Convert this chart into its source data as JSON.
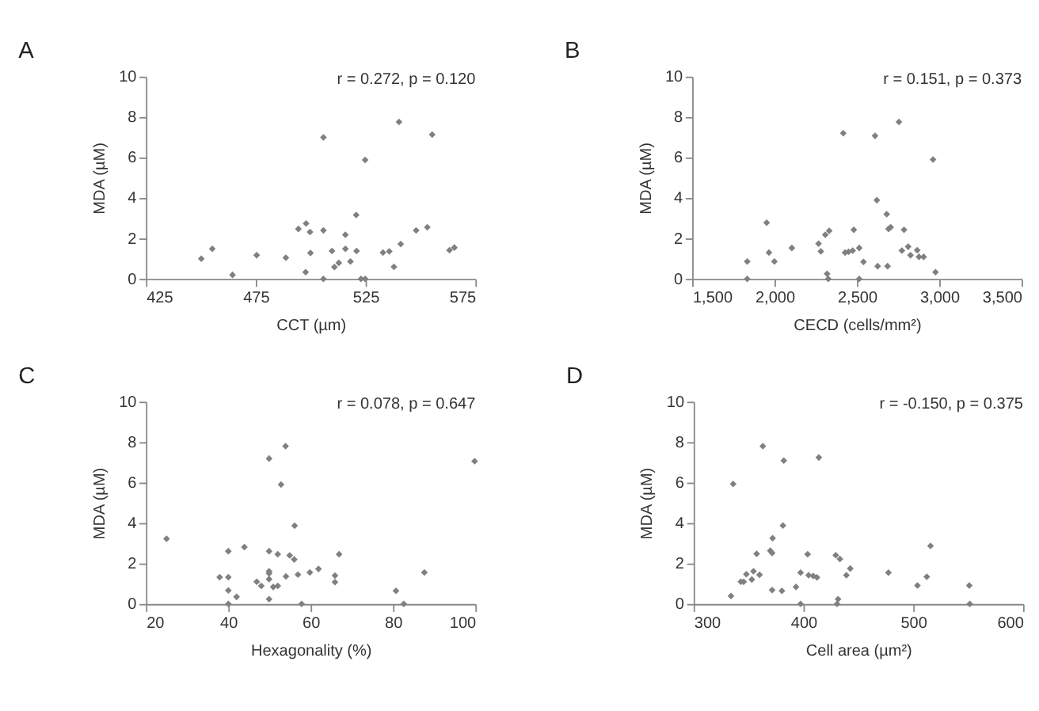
{
  "chart_data": [
    {
      "type": "scatter",
      "title": "A",
      "annotations": [
        "r = 0.272, p = 0.120"
      ],
      "xlabel": "CCT (µm)",
      "ylabel": "MDA (µM)",
      "marker": "diamond",
      "xlim": [
        425,
        575
      ],
      "xticks": [
        425,
        475,
        525,
        575
      ],
      "ylim": [
        0,
        10
      ],
      "yticks": [
        0,
        2,
        4,
        6,
        8,
        10
      ],
      "series": [
        {
          "color": "#808080",
          "x": [
            450.2,
            455.2,
            464.4,
            475.4,
            488.7,
            494.4,
            497.9,
            497.7,
            499.7,
            499.9,
            505.8,
            505.8,
            505.8,
            509.7,
            510.8,
            512.8,
            515.8,
            515.8,
            518.1,
            520.7,
            520.9,
            522.9,
            524.8,
            524.8,
            532.9,
            535.8,
            537.9,
            540.2,
            541.0,
            548.0,
            553.1,
            555.3,
            563.2,
            565.4
          ],
          "values": [
            1.0,
            1.49,
            0.2,
            1.17,
            1.05,
            2.47,
            2.74,
            0.33,
            2.32,
            1.28,
            7.0,
            2.4,
            0,
            1.38,
            0.59,
            0.79,
            2.18,
            1.49,
            0.86,
            3.16,
            1.38,
            0,
            0,
            5.88,
            1.3,
            1.36,
            0.6,
            7.76,
            1.72,
            2.4,
            2.55,
            7.13,
            1.42,
            1.55
          ]
        }
      ]
    },
    {
      "type": "scatter",
      "title": "B",
      "annotations": [
        "r = 0.151, p = 0.373"
      ],
      "xlabel": "CECD (cells/mm²)",
      "ylabel": "MDA (µM)",
      "marker": "diamond",
      "xlim": [
        1500,
        3500
      ],
      "xticks": [
        {
          "value": 1500,
          "label": "1,500"
        },
        {
          "value": 2000,
          "label": "2,000"
        },
        {
          "value": 2500,
          "label": "2,500"
        },
        {
          "value": 3000,
          "label": "3,000"
        },
        {
          "value": 3500,
          "label": "3,500"
        }
      ],
      "ylim": [
        0,
        10
      ],
      "yticks": [
        0,
        2,
        4,
        6,
        8,
        10
      ],
      "series": [
        {
          "color": "#808080",
          "x": [
            1834,
            1834,
            1952,
            1966,
            1999,
            2105,
            2267,
            2281,
            2308,
            2319,
            2326,
            2332,
            2417,
            2428,
            2449,
            2474,
            2481,
            2514,
            2514,
            2540,
            2610,
            2621,
            2626,
            2681,
            2686,
            2692,
            2705,
            2755,
            2773,
            2786,
            2811,
            2825,
            2866,
            2877,
            2905,
            2962,
            2977
          ],
          "values": [
            0.86,
            0,
            2.78,
            1.3,
            0.86,
            1.53,
            1.74,
            1.36,
            2.18,
            0.25,
            0,
            2.38,
            7.2,
            1.3,
            1.34,
            1.4,
            2.43,
            1.53,
            0,
            0.84,
            7.07,
            3.89,
            0.63,
            3.2,
            0.63,
            2.47,
            2.55,
            7.76,
            1.4,
            2.43,
            1.59,
            1.17,
            1.42,
            1.09,
            1.09,
            5.9,
            0.33
          ]
        }
      ]
    },
    {
      "type": "scatter",
      "title": "C",
      "annotations": [
        "r = 0.078, p = 0.647"
      ],
      "xlabel": "Hexagonality (%)",
      "ylabel": "MDA (µM)",
      "marker": "diamond",
      "xlim": [
        20,
        100
      ],
      "xticks": [
        20,
        40,
        60,
        80,
        100
      ],
      "ylim": [
        0,
        10
      ],
      "yticks": [
        0,
        2,
        4,
        6,
        8,
        10
      ],
      "series": [
        {
          "color": "#808080",
          "x": [
            25.0,
            37.9,
            40.0,
            40.0,
            40.0,
            40.0,
            42.0,
            43.9,
            46.9,
            48.0,
            49.9,
            49.9,
            49.9,
            49.9,
            49.9,
            49.9,
            50.9,
            52.0,
            52.0,
            52.8,
            53.9,
            54.0,
            54.9,
            56.0,
            56.1,
            56.9,
            57.8,
            59.8,
            61.9,
            65.9,
            65.9,
            66.9,
            80.7,
            82.6,
            87.6,
            99.8
          ],
          "values": [
            3.22,
            1.32,
            2.61,
            1.32,
            0.67,
            0,
            0.35,
            2.81,
            1.1,
            0.89,
            7.19,
            2.61,
            1.62,
            1.51,
            1.23,
            0.24,
            0.84,
            0.89,
            2.46,
            5.9,
            7.8,
            1.36,
            2.4,
            2.2,
            3.87,
            1.45,
            0,
            1.56,
            1.73,
            1.4,
            1.08,
            2.46,
            0.65,
            0,
            1.56,
            7.06
          ]
        }
      ]
    },
    {
      "type": "scatter",
      "title": "D",
      "annotations": [
        "r = -0.150, p = 0.375"
      ],
      "xlabel": "Cell area (µm²)",
      "ylabel": "MDA (µM)",
      "marker": "diamond",
      "xlim": [
        300,
        600
      ],
      "xticks": [
        300,
        400,
        500,
        600
      ],
      "ylim": [
        0,
        10
      ],
      "yticks": [
        0,
        2,
        4,
        6,
        8,
        10
      ],
      "series": [
        {
          "color": "#808080",
          "x": [
            334,
            336,
            343,
            345.5,
            348,
            353,
            354.5,
            357.4,
            360,
            363,
            369.8,
            371.9,
            371.5,
            371.5,
            380.4,
            381.3,
            382.1,
            393.2,
            397.4,
            397.4,
            403.8,
            404.7,
            408.9,
            412.3,
            414,
            429.4,
            431.5,
            430.6,
            433.2,
            439.1,
            442.6,
            477.4,
            503.8,
            512.3,
            515.7,
            551,
            551.5
          ],
          "values": [
            0.39,
            5.93,
            1.1,
            1.1,
            1.47,
            1.21,
            1.62,
            2.48,
            1.44,
            7.8,
            2.63,
            3.25,
            2.52,
            0.69,
            0.65,
            3.88,
            7.09,
            0.84,
            1.55,
            0,
            2.46,
            1.42,
            1.38,
            1.31,
            7.24,
            2.41,
            0.24,
            0,
            2.22,
            1.42,
            1.75,
            1.55,
            0.91,
            1.34,
            2.87,
            0.91,
            0
          ]
        }
      ]
    }
  ]
}
